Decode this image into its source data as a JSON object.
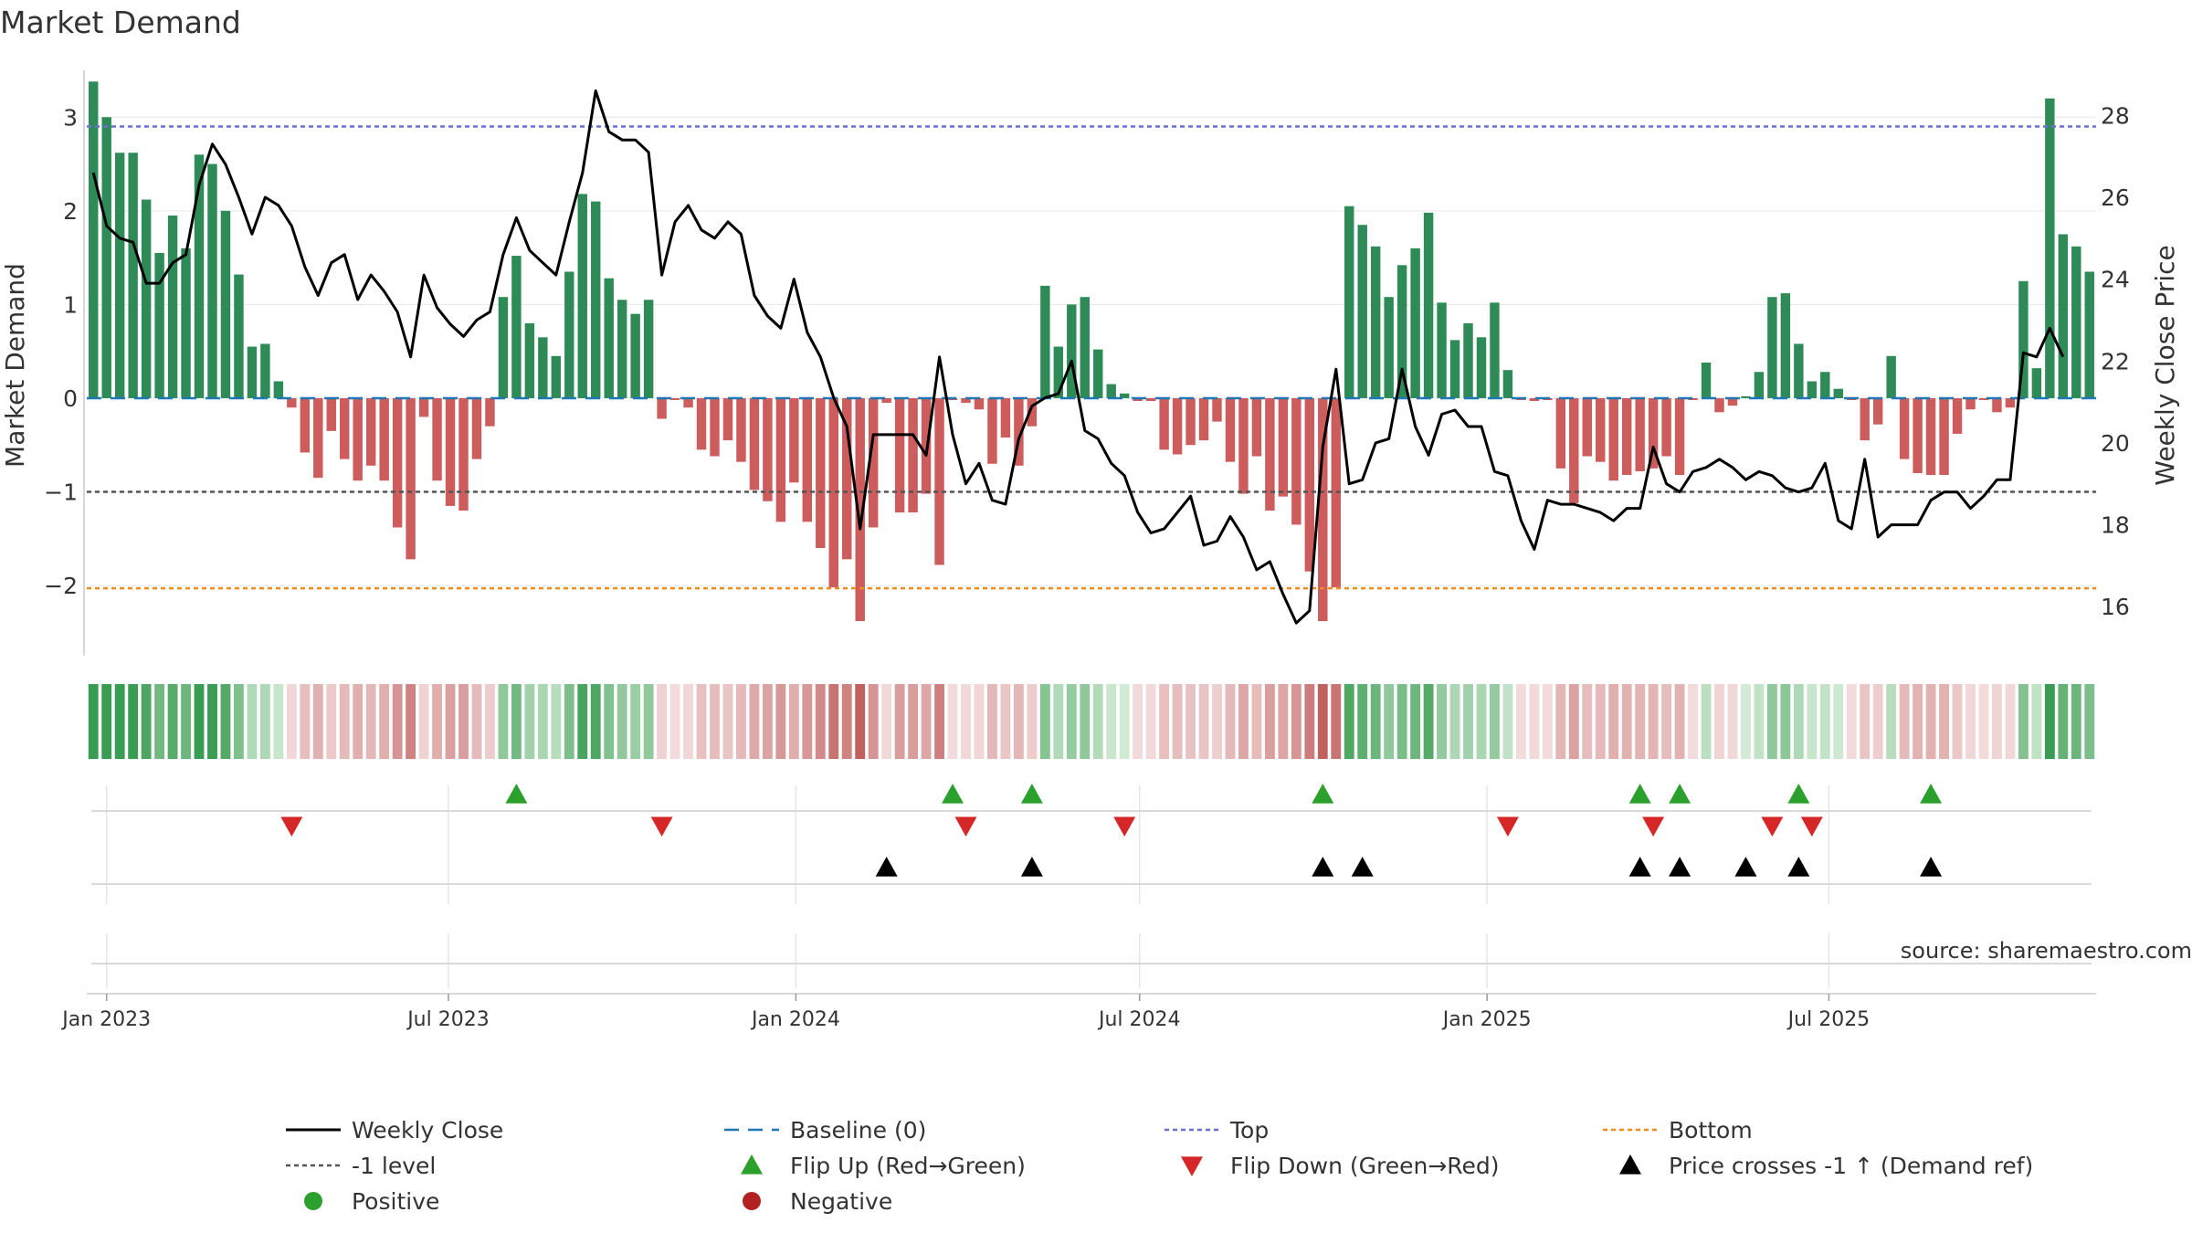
{
  "chart_data": {
    "type": "bar",
    "title": "Market Demand",
    "ylabel_left": "Market Demand",
    "ylabel_right": "Weekly Close Price",
    "source": "source: sharemaestro.com",
    "x_start": "2022-12-25",
    "x_step_days": 7,
    "ylim_left": [
      -2.75,
      3.5
    ],
    "ylim_right": [
      14.8,
      29.1
    ],
    "left_ticks": [
      3,
      2,
      1,
      0,
      -1,
      -2
    ],
    "left_tick_labels": [
      "3",
      "2",
      "1",
      "0",
      "−1",
      "−2"
    ],
    "right_ticks": [
      28,
      26,
      24,
      22,
      20,
      18,
      16
    ],
    "right_tick_labels": [
      "28",
      "26",
      "24",
      "22",
      "20",
      "18",
      "16"
    ],
    "date_ticks": [
      {
        "label": "Jan 2023",
        "date": "2023-01-01"
      },
      {
        "label": "Jul 2023",
        "date": "2023-07-01"
      },
      {
        "label": "Jan 2024",
        "date": "2024-01-01"
      },
      {
        "label": "Jul 2024",
        "date": "2024-07-01"
      },
      {
        "label": "Jan 2025",
        "date": "2025-01-01"
      },
      {
        "label": "Jul 2025",
        "date": "2025-07-01"
      }
    ],
    "levels": {
      "top": 2.9,
      "minus_one": -1.0,
      "bottom": -2.03,
      "baseline": 0
    },
    "demand": [
      3.38,
      3.0,
      2.62,
      2.62,
      2.12,
      1.55,
      1.95,
      1.6,
      2.6,
      2.5,
      2.0,
      1.32,
      0.55,
      0.58,
      0.18,
      -0.1,
      -0.58,
      -0.85,
      -0.35,
      -0.65,
      -0.88,
      -0.72,
      -0.88,
      -1.38,
      -1.72,
      -0.2,
      -0.88,
      -1.15,
      -1.2,
      -0.65,
      -0.3,
      1.08,
      1.52,
      0.8,
      0.65,
      0.45,
      1.35,
      2.18,
      2.1,
      1.28,
      1.05,
      0.9,
      1.05,
      -0.22,
      -0.02,
      -0.1,
      -0.55,
      -0.62,
      -0.45,
      -0.68,
      -0.98,
      -1.1,
      -1.32,
      -0.9,
      -1.32,
      -1.6,
      -2.02,
      -1.72,
      -2.38,
      -1.38,
      -0.05,
      -1.22,
      -1.22,
      -1.02,
      -1.78,
      -0.02,
      -0.05,
      -0.12,
      -0.7,
      -0.42,
      -0.72,
      -0.3,
      1.2,
      0.55,
      1.0,
      1.08,
      0.52,
      0.15,
      0.05,
      -0.03,
      -0.03,
      -0.55,
      -0.6,
      -0.5,
      -0.45,
      -0.25,
      -0.68,
      -1.02,
      -0.62,
      -1.2,
      -1.05,
      -1.35,
      -1.85,
      -2.38,
      -2.02,
      2.05,
      1.85,
      1.62,
      1.08,
      1.42,
      1.6,
      1.98,
      1.02,
      0.62,
      0.8,
      0.65,
      1.02,
      0.3,
      -0.02,
      -0.03,
      -0.02,
      -0.75,
      -1.12,
      -0.62,
      -0.68,
      -0.88,
      -0.82,
      -0.78,
      -0.75,
      -0.62,
      -0.82,
      -0.02,
      0.38,
      -0.15,
      -0.08,
      0.02,
      0.28,
      1.08,
      1.12,
      0.58,
      0.18,
      0.28,
      0.1,
      -0.02,
      -0.45,
      -0.28,
      0.45,
      -0.65,
      -0.8,
      -0.82,
      -0.82,
      -0.38,
      -0.12,
      -0.02,
      -0.15,
      -0.1,
      1.25,
      0.32,
      3.2,
      1.75,
      1.62,
      1.35
    ],
    "weekly_close": [
      26.6,
      25.3,
      25.0,
      24.9,
      23.9,
      23.9,
      24.4,
      24.6,
      26.3,
      27.3,
      26.8,
      26.0,
      25.1,
      26.0,
      25.8,
      25.3,
      24.3,
      23.6,
      24.4,
      24.6,
      23.5,
      24.1,
      23.7,
      23.2,
      22.1,
      24.1,
      23.3,
      22.9,
      22.6,
      23.0,
      23.2,
      24.6,
      25.5,
      24.7,
      24.4,
      24.1,
      25.4,
      26.6,
      28.6,
      27.6,
      27.4,
      27.4,
      27.1,
      24.1,
      25.4,
      25.8,
      25.2,
      25.0,
      25.4,
      25.1,
      23.6,
      23.1,
      22.8,
      24.0,
      22.7,
      22.1,
      21.1,
      20.4,
      17.9,
      20.2,
      20.2,
      20.2,
      20.2,
      19.7,
      22.1,
      20.2,
      19.0,
      19.5,
      18.6,
      18.5,
      20.1,
      20.9,
      21.1,
      21.2,
      22.0,
      20.3,
      20.1,
      19.5,
      19.2,
      18.3,
      17.8,
      17.9,
      18.3,
      18.7,
      17.5,
      17.6,
      18.2,
      17.7,
      16.9,
      17.1,
      16.3,
      15.6,
      15.9,
      19.9,
      21.8,
      19.0,
      19.1,
      20.0,
      20.1,
      21.8,
      20.4,
      19.7,
      20.7,
      20.8,
      20.4,
      20.4,
      19.3,
      19.2,
      18.1,
      17.4,
      18.6,
      18.5,
      18.5,
      18.4,
      18.3,
      18.1,
      18.4,
      18.4,
      19.9,
      19.0,
      18.8,
      19.3,
      19.4,
      19.6,
      19.4,
      19.1,
      19.3,
      19.2,
      18.9,
      18.8,
      18.9,
      19.5,
      18.1,
      17.9,
      19.6,
      17.7,
      18.0,
      18.0,
      18.0,
      18.6,
      18.8,
      18.8,
      18.4,
      18.7,
      19.1,
      19.1,
      22.2,
      22.1,
      22.8,
      22.1
    ],
    "flip_up_weeks": [
      32,
      65,
      71,
      93,
      117,
      120,
      129,
      139
    ],
    "flip_down_weeks": [
      15,
      43,
      66,
      78,
      107,
      118,
      127,
      130
    ],
    "price_cross_weeks": [
      60,
      71,
      93,
      96,
      117,
      120,
      125,
      129,
      139
    ],
    "legend": [
      {
        "label": "Weekly Close",
        "marker": "solid-line"
      },
      {
        "label": "Baseline (0)",
        "marker": "dashed-line"
      },
      {
        "label": "Top",
        "marker": "dotted-line-top"
      },
      {
        "label": "Bottom",
        "marker": "dotted-line-bottom"
      },
      {
        "label": "-1 level",
        "marker": "dotted-line-minus-one"
      },
      {
        "label": "Flip Up (Red→Green)",
        "marker": "triangle-up-green"
      },
      {
        "label": "Flip Down (Green→Red)",
        "marker": "triangle-down-red"
      },
      {
        "label": "Price crosses -1 ↑ (Demand ref)",
        "marker": "triangle-up-black"
      },
      {
        "label": "Positive",
        "marker": "circle-green"
      },
      {
        "label": "Negative",
        "marker": "circle-red"
      }
    ],
    "colors": {
      "positive_bar": "#2e8b57",
      "negative_bar": "#cd5c5c",
      "weekly_close": "#000000",
      "baseline": "#1f77b4",
      "top": "#6a6fd1",
      "bottom": "#f08c1a",
      "minus_one": "#555555",
      "flip_up": "#2ca02c",
      "flip_down": "#d62728",
      "price_cross": "#000000",
      "legend_positive": "#2ca02c",
      "legend_negative": "#b22222",
      "grid": "#e6e6e6"
    }
  }
}
